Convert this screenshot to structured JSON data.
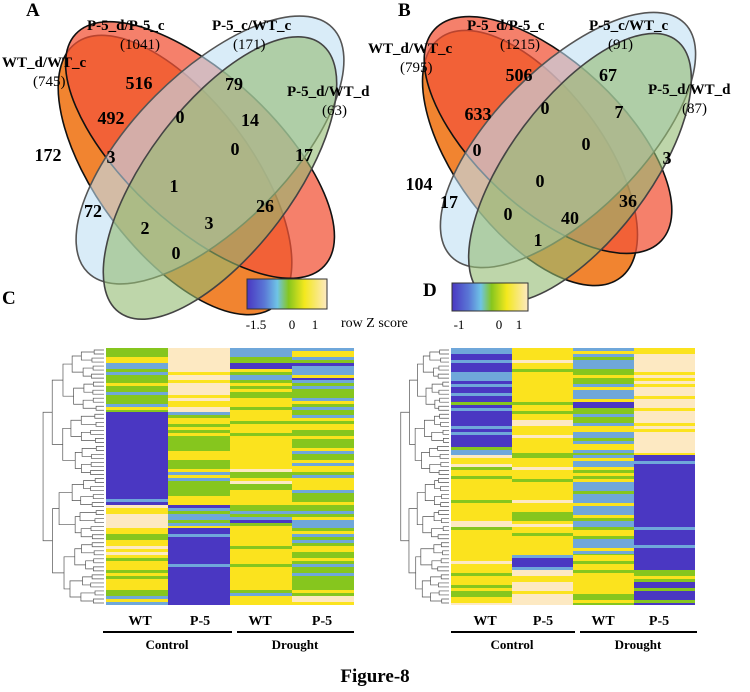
{
  "figure_title": "Figure-8",
  "colors": {
    "wt_d": "#f07a1e",
    "p5_dc": "#f2553a",
    "p5_c": "#bfe0f3",
    "p5_d": "#93bb72",
    "heat_low": "#4a37c2",
    "heat_blue": "#6fa7da",
    "heat_green": "#86c61e",
    "heat_yellow": "#fbe31e",
    "heat_high": "#fde9c2"
  },
  "venn_a": {
    "panel": "A",
    "sets": [
      {
        "label": "WT_d/WT_c",
        "count": "(745)"
      },
      {
        "label": "P-5_d/P-5_c",
        "count": "(1041)"
      },
      {
        "label": "P-5_c/WT_c",
        "count": "(171)"
      },
      {
        "label": "P-5_d/WT_d",
        "count": "(63)"
      }
    ],
    "regions": [
      "172",
      "516",
      "79",
      "17",
      "492",
      "0",
      "14",
      "3",
      "0",
      "72",
      "1",
      "26",
      "2",
      "3",
      "0"
    ]
  },
  "venn_b": {
    "panel": "B",
    "sets": [
      {
        "label": "WT_d/WT_c",
        "count": "(795)"
      },
      {
        "label": "P-5_d/P-5_c",
        "count": "(1215)"
      },
      {
        "label": "P-5_c/WT_c",
        "count": "(91)"
      },
      {
        "label": "P-5_d/WT_d",
        "count": "(87)"
      }
    ],
    "regions": [
      "104",
      "506",
      "67",
      "3",
      "633",
      "0",
      "7",
      "0",
      "0",
      "17",
      "0",
      "36",
      "0",
      "40",
      "1"
    ]
  },
  "heatmap_c": {
    "panel": "C",
    "scale_ticks": [
      "-1.5",
      "0",
      "1"
    ],
    "scale_label": "row Z score",
    "columns": [
      "WT",
      "P-5",
      "WT",
      "P-5"
    ],
    "groups": [
      "Control",
      "Drought"
    ]
  },
  "heatmap_d": {
    "panel": "D",
    "scale_ticks": [
      "-1",
      "0",
      "1"
    ],
    "columns": [
      "WT",
      "P-5",
      "WT",
      "P-5"
    ],
    "groups": [
      "Control",
      "Drought"
    ]
  }
}
